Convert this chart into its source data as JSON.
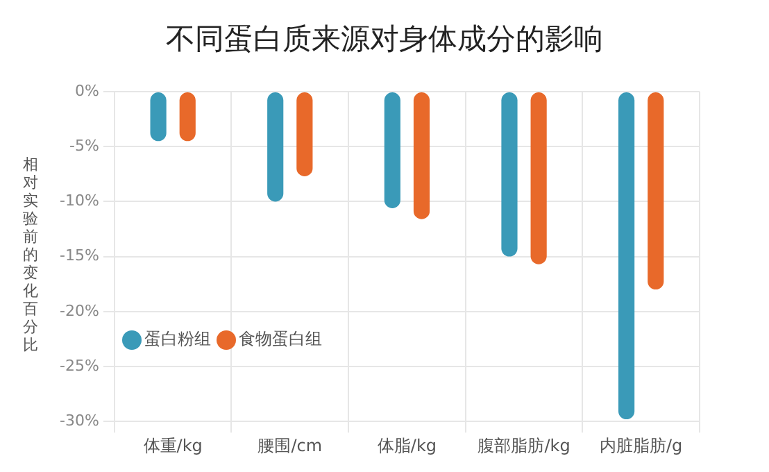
{
  "chart_data": {
    "type": "bar",
    "title": "不同蛋白质来源对身体成分的影响",
    "ylabel": "相对实验前的变化百分比",
    "categories": [
      "体重/kg",
      "腰围/cm",
      "体脂/kg",
      "腹部脂肪/kg",
      "内脏脂肪/g"
    ],
    "series": [
      {
        "name": "蛋白粉组",
        "color": "#3a9ab8",
        "values": [
          -4.5,
          -10,
          -10.6,
          -15,
          -29.8
        ]
      },
      {
        "name": "食物蛋白组",
        "color": "#e8692a",
        "values": [
          -4.5,
          -7.7,
          -11.6,
          -15.7,
          -18
        ]
      }
    ],
    "ylim": [
      -30,
      0
    ],
    "yticks": [
      {
        "value": 0,
        "label": "0%"
      },
      {
        "value": -5,
        "label": "-5%"
      },
      {
        "value": -10,
        "label": "-10%"
      },
      {
        "value": -15,
        "label": "-15%"
      },
      {
        "value": -20,
        "label": "-20%"
      },
      {
        "value": -25,
        "label": "-25%"
      },
      {
        "value": -30,
        "label": "-30%"
      }
    ],
    "grid": true,
    "legend": "left"
  }
}
